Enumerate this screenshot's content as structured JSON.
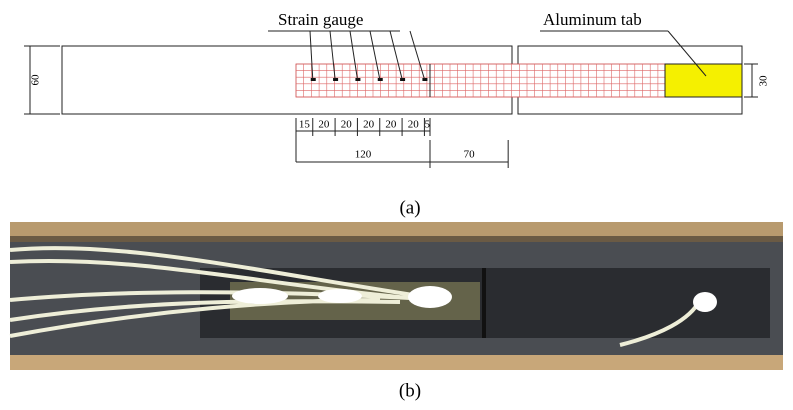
{
  "figure": {
    "diagram": {
      "labels": {
        "strain_gauge": "Strain gauge",
        "aluminum_tab": "Aluminum tab"
      },
      "width_dims": [
        60,
        30
      ],
      "gauge_spacing": [
        15,
        20,
        20,
        20,
        20,
        20,
        5
      ],
      "lengths": [
        120,
        70
      ]
    },
    "panels": [
      "(a)",
      "(b)"
    ]
  }
}
